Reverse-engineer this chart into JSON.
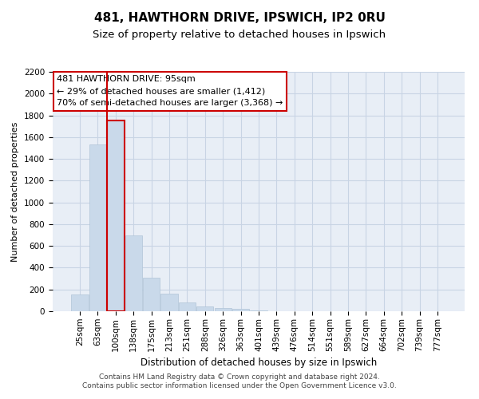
{
  "title1": "481, HAWTHORN DRIVE, IPSWICH, IP2 0RU",
  "title2": "Size of property relative to detached houses in Ipswich",
  "xlabel": "Distribution of detached houses by size in Ipswich",
  "ylabel": "Number of detached properties",
  "categories": [
    "25sqm",
    "63sqm",
    "100sqm",
    "138sqm",
    "175sqm",
    "213sqm",
    "251sqm",
    "288sqm",
    "326sqm",
    "363sqm",
    "401sqm",
    "439sqm",
    "476sqm",
    "514sqm",
    "551sqm",
    "589sqm",
    "627sqm",
    "664sqm",
    "702sqm",
    "739sqm",
    "777sqm"
  ],
  "values": [
    155,
    1530,
    1750,
    695,
    310,
    160,
    78,
    42,
    27,
    20,
    10,
    0,
    0,
    0,
    0,
    0,
    0,
    0,
    0,
    0,
    0
  ],
  "bar_color": "#c9d9ea",
  "bar_edge_color": "#b0c4d8",
  "highlight_bar_index": 2,
  "highlight_edge_color": "#cc0000",
  "vline_color": "#cc0000",
  "annotation_box_text": "481 HAWTHORN DRIVE: 95sqm\n← 29% of detached houses are smaller (1,412)\n70% of semi-detached houses are larger (3,368) →",
  "annotation_box_color": "white",
  "annotation_box_edge": "#cc0000",
  "ylim": [
    0,
    2200
  ],
  "yticks": [
    0,
    200,
    400,
    600,
    800,
    1000,
    1200,
    1400,
    1600,
    1800,
    2000,
    2200
  ],
  "grid_color": "#c8d4e4",
  "bg_color": "#e8eef6",
  "footnote": "Contains HM Land Registry data © Crown copyright and database right 2024.\nContains public sector information licensed under the Open Government Licence v3.0.",
  "title1_fontsize": 11,
  "title2_fontsize": 9.5,
  "xlabel_fontsize": 8.5,
  "ylabel_fontsize": 8,
  "tick_fontsize": 7.5,
  "annotation_fontsize": 8,
  "footnote_fontsize": 6.5
}
